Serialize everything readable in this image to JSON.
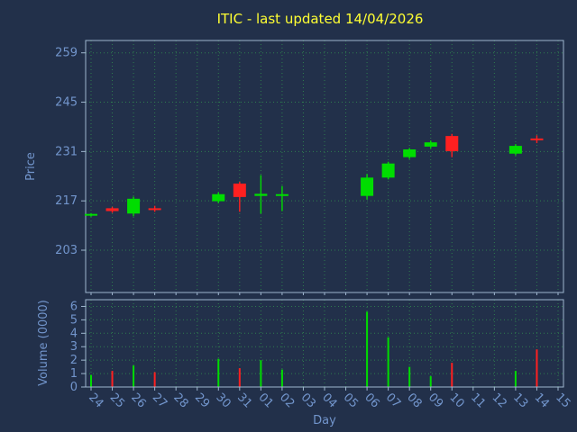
{
  "title": "ITIC - last updated 14/04/2026",
  "axes": {
    "price_label": "Price",
    "volume_label": "Volume (0000)",
    "day_label": "Day"
  },
  "colors": {
    "background": "#22304a",
    "grid": "#2e7d4e",
    "up": "#00dd00",
    "down": "#ff2020",
    "axis": "#9fb6cf",
    "tick_label": "#7295cc",
    "title": "#ffff33"
  },
  "chart_data": {
    "type": "candlestick",
    "title": "ITIC - last updated 14/04/2026",
    "xlabel": "Day",
    "ylabel_price": "Price",
    "ylabel_volume": "Volume (0000)",
    "legend": "none",
    "grid": "dotted",
    "categories": [
      "24",
      "25",
      "26",
      "27",
      "28",
      "29",
      "30",
      "31",
      "01",
      "02",
      "03",
      "04",
      "05",
      "06",
      "07",
      "08",
      "09",
      "10",
      "11",
      "12",
      "13",
      "14",
      "15"
    ],
    "price_ticks": [
      203,
      217,
      231,
      245,
      259
    ],
    "price_range": [
      191,
      262.5
    ],
    "volume_ticks": [
      0,
      1,
      2,
      3,
      4,
      5,
      6
    ],
    "volume_range": [
      0,
      6.5
    ],
    "candles": [
      {
        "day": "24",
        "open": 212.9,
        "high": 213.5,
        "low": 212.5,
        "close": 213.3
      },
      {
        "day": "25",
        "open": 214.9,
        "high": 215.3,
        "low": 213.6,
        "close": 214.1
      },
      {
        "day": "26",
        "open": 213.4,
        "high": 218.2,
        "low": 212.6,
        "close": 217.6
      },
      {
        "day": "27",
        "open": 214.9,
        "high": 215.6,
        "low": 213.9,
        "close": 214.4
      },
      {
        "day": "30",
        "open": 216.9,
        "high": 219.4,
        "low": 216.4,
        "close": 218.9
      },
      {
        "day": "31",
        "open": 221.9,
        "high": 222.4,
        "low": 213.9,
        "close": 218.1
      },
      {
        "day": "01",
        "open": 218.4,
        "high": 224.3,
        "low": 213.4,
        "close": 219.0
      },
      {
        "day": "02",
        "open": 218.4,
        "high": 221.2,
        "low": 214.1,
        "close": 218.9
      },
      {
        "day": "06",
        "open": 218.4,
        "high": 224.6,
        "low": 217.4,
        "close": 223.6
      },
      {
        "day": "07",
        "open": 223.6,
        "high": 228.1,
        "low": 223.1,
        "close": 227.6
      },
      {
        "day": "08",
        "open": 229.4,
        "high": 232.0,
        "low": 228.9,
        "close": 231.6
      },
      {
        "day": "09",
        "open": 232.4,
        "high": 234.1,
        "low": 231.9,
        "close": 233.6
      },
      {
        "day": "10",
        "open": 235.4,
        "high": 236.0,
        "low": 229.4,
        "close": 231.1
      },
      {
        "day": "13",
        "open": 230.4,
        "high": 233.1,
        "low": 229.9,
        "close": 232.6
      },
      {
        "day": "14",
        "open": 234.7,
        "high": 235.6,
        "low": 233.4,
        "close": 234.2
      }
    ],
    "volumes": [
      {
        "day": "24",
        "value": 0.9,
        "direction": "up"
      },
      {
        "day": "25",
        "value": 1.2,
        "direction": "down"
      },
      {
        "day": "26",
        "value": 1.6,
        "direction": "up"
      },
      {
        "day": "27",
        "value": 1.1,
        "direction": "down"
      },
      {
        "day": "30",
        "value": 2.1,
        "direction": "up"
      },
      {
        "day": "31",
        "value": 1.4,
        "direction": "down"
      },
      {
        "day": "01",
        "value": 2.0,
        "direction": "up"
      },
      {
        "day": "02",
        "value": 1.3,
        "direction": "up"
      },
      {
        "day": "06",
        "value": 5.6,
        "direction": "up"
      },
      {
        "day": "07",
        "value": 3.7,
        "direction": "up"
      },
      {
        "day": "08",
        "value": 1.5,
        "direction": "up"
      },
      {
        "day": "09",
        "value": 0.8,
        "direction": "up"
      },
      {
        "day": "10",
        "value": 1.8,
        "direction": "down"
      },
      {
        "day": "13",
        "value": 1.2,
        "direction": "up"
      },
      {
        "day": "14",
        "value": 2.8,
        "direction": "down"
      }
    ]
  }
}
